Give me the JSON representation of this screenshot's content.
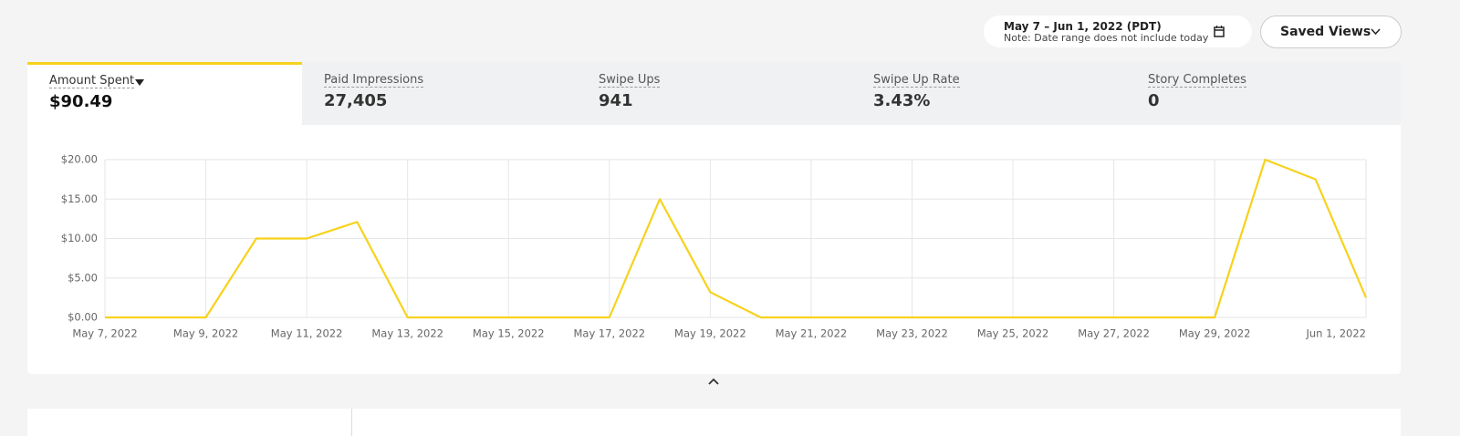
{
  "header": {
    "date_range": "May 7 – Jun 1, 2022 (PDT)",
    "note": "Note: Date range does not include today",
    "saved_views": "Saved Views"
  },
  "tabs": [
    {
      "label": "Amount Spent",
      "value": "$90.49"
    },
    {
      "label": "Paid Impressions",
      "value": "27,405"
    },
    {
      "label": "Swipe Ups",
      "value": "941"
    },
    {
      "label": "Swipe Up Rate",
      "value": "3.43%"
    },
    {
      "label": "Story Completes",
      "value": "0"
    }
  ],
  "chart_data": {
    "type": "line",
    "categories": [
      "May 7, 2022",
      null,
      "May 9, 2022",
      null,
      "May 11, 2022",
      null,
      "May 13, 2022",
      null,
      "May 15, 2022",
      null,
      "May 17, 2022",
      null,
      "May 19, 2022",
      null,
      "May 21, 2022",
      null,
      "May 23, 2022",
      null,
      "May 25, 2022",
      null,
      "May 27, 2022",
      null,
      "May 29, 2022",
      null,
      null,
      "Jun 1, 2022"
    ],
    "series": [
      {
        "name": "Amount Spent",
        "color": "#f7d21c",
        "values": [
          0,
          0,
          0,
          10,
          10,
          12.1,
          0,
          0,
          0,
          0,
          0,
          15,
          3.2,
          0,
          0,
          0,
          0,
          0,
          0,
          0,
          0,
          0,
          0,
          20,
          17.5,
          2.5
        ]
      }
    ],
    "ylim": [
      0,
      20
    ],
    "yticks": [
      {
        "value": 0,
        "label": "$0.00"
      },
      {
        "value": 5,
        "label": "$5.00"
      },
      {
        "value": 10,
        "label": "$10.00"
      },
      {
        "value": 15,
        "label": "$15.00"
      },
      {
        "value": 20,
        "label": "$20.00"
      }
    ],
    "grid": true
  }
}
